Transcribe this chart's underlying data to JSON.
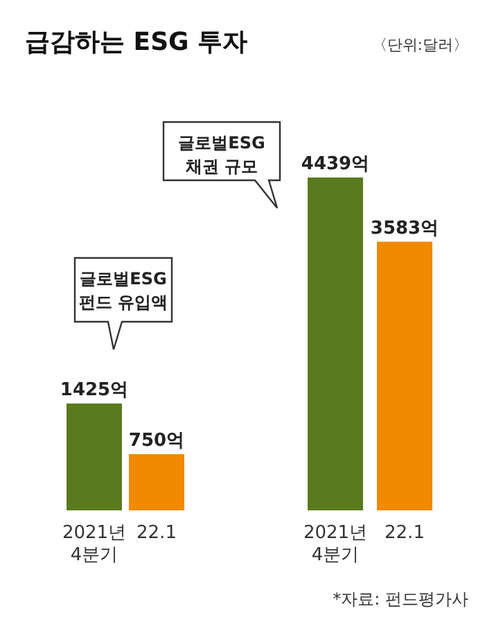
{
  "chart_data": {
    "type": "bar",
    "title": "급감하는 ESG 투자",
    "subtitle": "〈단위:달러〉",
    "categories": [
      "2021년 4분기",
      "22.1",
      "2021년 4분기",
      "22.1"
    ],
    "values": [
      1425,
      750,
      4439,
      3583
    ],
    "value_labels": [
      "1425억",
      "750억",
      "4439억",
      "3583억"
    ],
    "colors": [
      "#5a7a1e",
      "#f28a00",
      "#5a7a1e",
      "#f28a00"
    ],
    "annotations": [
      "글로벌ESG 펀드 유입액",
      "글로벌ESG 채권 규모",
      "*자료: 펀드평가사"
    ]
  }
}
